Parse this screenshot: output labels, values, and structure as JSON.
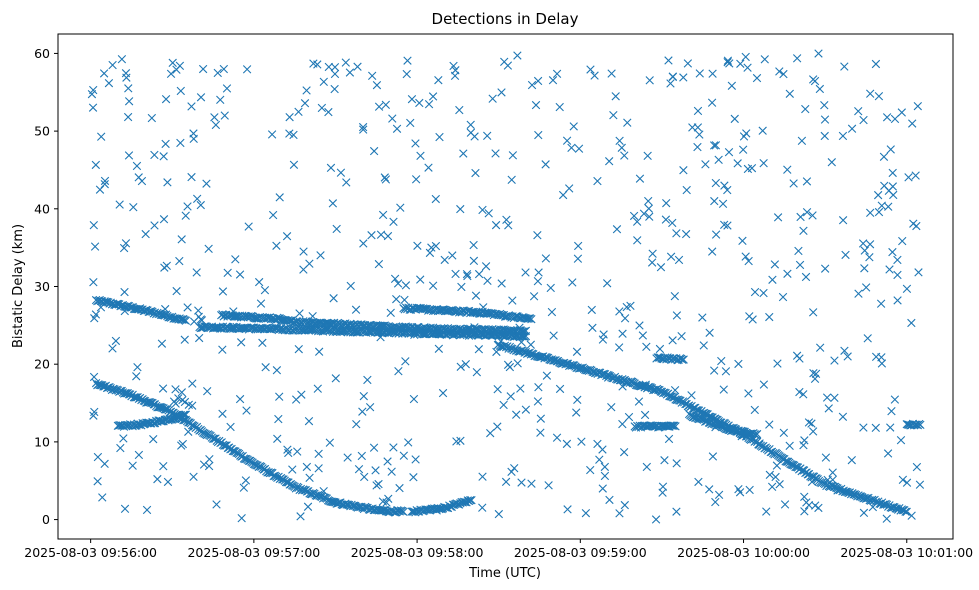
{
  "chart_data": {
    "type": "scatter",
    "title": "Detections in Delay",
    "xlabel": "Time (UTC)",
    "ylabel": "Bistatic Delay (km)",
    "x_axis_kind": "time",
    "xlim": [
      "2025-08-03 09:55:48",
      "2025-08-03 10:01:17"
    ],
    "ylim": [
      -2.5,
      62.5
    ],
    "x_ticks": [
      "2025-08-03 09:56:00",
      "2025-08-03 09:57:00",
      "2025-08-03 09:58:00",
      "2025-08-03 09:59:00",
      "2025-08-03 10:00:00",
      "2025-08-03 10:01:00"
    ],
    "y_ticks": [
      "0",
      "10",
      "20",
      "30",
      "40",
      "50",
      "60"
    ],
    "marker": "x",
    "grid": false,
    "legend": "none",
    "color": "#1f77b4",
    "series": [
      {
        "name": "",
        "tracks": [
          {
            "x": [
              "2025-08-03 09:56:02",
              "2025-08-03 09:56:15",
              "2025-08-03 09:56:25",
              "2025-08-03 09:56:35"
            ],
            "y": [
              28.2,
              27.3,
              26.5,
              25.6
            ]
          },
          {
            "x": [
              "2025-08-03 09:56:02",
              "2025-08-03 09:56:15",
              "2025-08-03 09:56:30",
              "2025-08-03 09:56:45",
              "2025-08-03 09:57:00",
              "2025-08-03 09:57:15",
              "2025-08-03 09:57:30",
              "2025-08-03 09:57:45",
              "2025-08-03 09:57:55"
            ],
            "y": [
              17.5,
              16.0,
              13.8,
              10.5,
              7.2,
              4.2,
              2.2,
              1.2,
              1.0
            ]
          },
          {
            "x": [
              "2025-08-03 09:56:10",
              "2025-08-03 09:56:20",
              "2025-08-03 09:56:30",
              "2025-08-03 09:56:35"
            ],
            "y": [
              12.0,
              12.3,
              13.0,
              13.5
            ]
          },
          {
            "x": [
              "2025-08-03 09:56:40",
              "2025-08-03 09:57:30",
              "2025-08-03 09:58:20",
              "2025-08-03 09:58:40"
            ],
            "y": [
              24.8,
              24.3,
              23.8,
              23.6
            ]
          },
          {
            "x": [
              "2025-08-03 09:56:48",
              "2025-08-03 09:57:10"
            ],
            "y": [
              26.3,
              25.8
            ]
          },
          {
            "x": [
              "2025-08-03 09:57:10",
              "2025-08-03 09:57:40",
              "2025-08-03 09:58:10",
              "2025-08-03 09:58:40"
            ],
            "y": [
              25.6,
              25.0,
              24.5,
              24.3
            ]
          },
          {
            "x": [
              "2025-08-03 09:57:55",
              "2025-08-03 09:58:10",
              "2025-08-03 09:58:25",
              "2025-08-03 09:58:42"
            ],
            "y": [
              27.2,
              26.9,
              26.6,
              25.8
            ]
          },
          {
            "x": [
              "2025-08-03 09:57:58",
              "2025-08-03 09:58:10",
              "2025-08-03 09:58:20"
            ],
            "y": [
              1.0,
              1.5,
              2.5
            ]
          },
          {
            "x": [
              "2025-08-03 09:58:30",
              "2025-08-03 09:59:00",
              "2025-08-03 09:59:30",
              "2025-08-03 10:00:00",
              "2025-08-03 10:00:30",
              "2025-08-03 10:01:00"
            ],
            "y": [
              22.5,
              19.5,
              16.5,
              11.0,
              4.5,
              1.0
            ]
          },
          {
            "x": [
              "2025-08-03 09:59:20",
              "2025-08-03 09:59:35"
            ],
            "y": [
              12.0,
              12.0
            ]
          },
          {
            "x": [
              "2025-08-03 09:59:28",
              "2025-08-03 09:59:38"
            ],
            "y": [
              20.8,
              20.6
            ]
          },
          {
            "x": [
              "2025-08-03 09:59:40",
              "2025-08-03 09:59:55",
              "2025-08-03 10:00:05"
            ],
            "y": [
              13.5,
              11.5,
              11.0
            ]
          },
          {
            "x": [
              "2025-08-03 10:01:00",
              "2025-08-03 10:01:05"
            ],
            "y": [
              12.2,
              12.2
            ]
          }
        ],
        "clutter": {
          "x_range": [
            "2025-08-03 09:56:00",
            "2025-08-03 10:01:05"
          ],
          "y_range": [
            0,
            60
          ],
          "approx_count": 700
        }
      }
    ]
  }
}
